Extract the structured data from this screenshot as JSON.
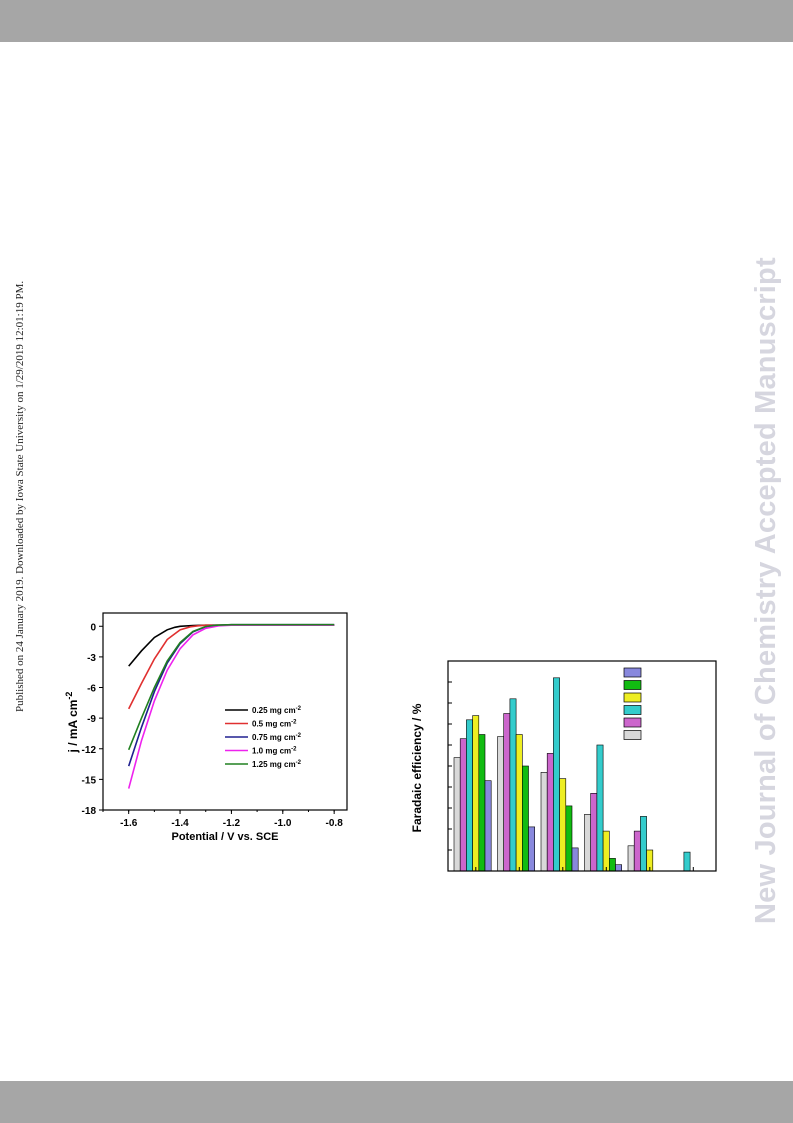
{
  "side_note": "Published on 24 January 2019. Downloaded by Iowa State University on 1/29/2019 12:01:19 PM.",
  "watermark": "New Journal of Chemistry Accepted Manuscript",
  "chart_data": [
    {
      "type": "line",
      "xlabel": "Potential / V vs. SCE",
      "ylabel": "j / mA cm",
      "ylabel_sup": "-2",
      "xlim": [
        -1.7,
        -0.75
      ],
      "ylim": [
        -18,
        1.3
      ],
      "xticks": [
        -1.6,
        -1.4,
        -1.2,
        -1.0,
        -0.8
      ],
      "xtick_labels": [
        "-1.6",
        "-1.4",
        "-1.2",
        "-1.0",
        "-0.8"
      ],
      "yticks": [
        0,
        -3,
        -6,
        -9,
        -12,
        -15,
        -18
      ],
      "ytick_labels": [
        "0",
        "-3",
        "-6",
        "-9",
        "-12",
        "-15",
        "-18"
      ],
      "legend_position": "lower-right",
      "series": [
        {
          "name": "0.25 mg cm",
          "sup": "-2",
          "color": "#000000",
          "points": [
            [
              -1.6,
              -3.9
            ],
            [
              -1.55,
              -2.4
            ],
            [
              -1.5,
              -1.1
            ],
            [
              -1.45,
              -0.35
            ],
            [
              -1.42,
              -0.1
            ],
            [
              -1.4,
              0.0
            ],
            [
              -1.35,
              0.08
            ],
            [
              -1.3,
              0.1
            ],
            [
              -1.2,
              0.1
            ],
            [
              -1.0,
              0.1
            ],
            [
              -0.8,
              0.1
            ]
          ]
        },
        {
          "name": "0.5 mg cm",
          "sup": "-2",
          "color": "#e03030",
          "points": [
            [
              -1.6,
              -8.1
            ],
            [
              -1.55,
              -5.6
            ],
            [
              -1.5,
              -3.2
            ],
            [
              -1.45,
              -1.3
            ],
            [
              -1.4,
              -0.35
            ],
            [
              -1.36,
              -0.05
            ],
            [
              -1.33,
              0.05
            ],
            [
              -1.3,
              0.1
            ],
            [
              -1.2,
              0.1
            ],
            [
              -1.0,
              0.1
            ],
            [
              -0.8,
              0.1
            ]
          ]
        },
        {
          "name": "0.75 mg cm",
          "sup": "-2",
          "color": "#202090",
          "points": [
            [
              -1.6,
              -13.7
            ],
            [
              -1.55,
              -9.9
            ],
            [
              -1.5,
              -6.4
            ],
            [
              -1.45,
              -3.6
            ],
            [
              -1.4,
              -1.7
            ],
            [
              -1.35,
              -0.55
            ],
            [
              -1.3,
              -0.05
            ],
            [
              -1.27,
              0.08
            ],
            [
              -1.2,
              0.15
            ],
            [
              -1.0,
              0.15
            ],
            [
              -0.8,
              0.15
            ]
          ]
        },
        {
          "name": "1.0 mg cm",
          "sup": "-2",
          "color": "#ee22ee",
          "points": [
            [
              -1.6,
              -15.9
            ],
            [
              -1.55,
              -11.2
            ],
            [
              -1.5,
              -7.3
            ],
            [
              -1.45,
              -4.3
            ],
            [
              -1.4,
              -2.2
            ],
            [
              -1.35,
              -0.85
            ],
            [
              -1.3,
              -0.2
            ],
            [
              -1.25,
              0.05
            ],
            [
              -1.2,
              0.1
            ],
            [
              -1.0,
              0.1
            ],
            [
              -0.8,
              0.1
            ]
          ]
        },
        {
          "name": "1.25 mg cm",
          "sup": "-2",
          "color": "#208020",
          "points": [
            [
              -1.6,
              -12.1
            ],
            [
              -1.55,
              -9.0
            ],
            [
              -1.5,
              -6.0
            ],
            [
              -1.45,
              -3.4
            ],
            [
              -1.4,
              -1.6
            ],
            [
              -1.35,
              -0.5
            ],
            [
              -1.3,
              -0.02
            ],
            [
              -1.26,
              0.1
            ],
            [
              -1.2,
              0.15
            ],
            [
              -1.0,
              0.15
            ],
            [
              -0.8,
              0.15
            ]
          ]
        }
      ]
    },
    {
      "type": "bar",
      "ylabel": "Faradaic efficiency / %",
      "ylim": [
        0,
        100
      ],
      "yticks": [
        0,
        10,
        20,
        30,
        40,
        50,
        60,
        70,
        80,
        90,
        100
      ],
      "legend_position": "top-right",
      "series_colors": [
        "#d9d9d9",
        "#cc66cc",
        "#33cccc",
        "#eeee22",
        "#11bb11",
        "#8888dd"
      ],
      "legend_colors": [
        "#8888dd",
        "#11bb11",
        "#eeee22",
        "#33cccc",
        "#cc66cc",
        "#d9d9d9"
      ],
      "groups": [
        [
          54,
          63,
          72,
          74,
          65,
          43
        ],
        [
          64,
          75,
          82,
          65,
          50,
          21
        ],
        [
          47,
          56,
          92,
          44,
          31,
          11
        ],
        [
          27,
          37,
          60,
          19,
          6,
          3
        ],
        [
          12,
          19,
          26,
          10,
          0,
          0
        ],
        [
          0,
          0,
          9,
          0,
          0,
          0
        ]
      ]
    }
  ]
}
